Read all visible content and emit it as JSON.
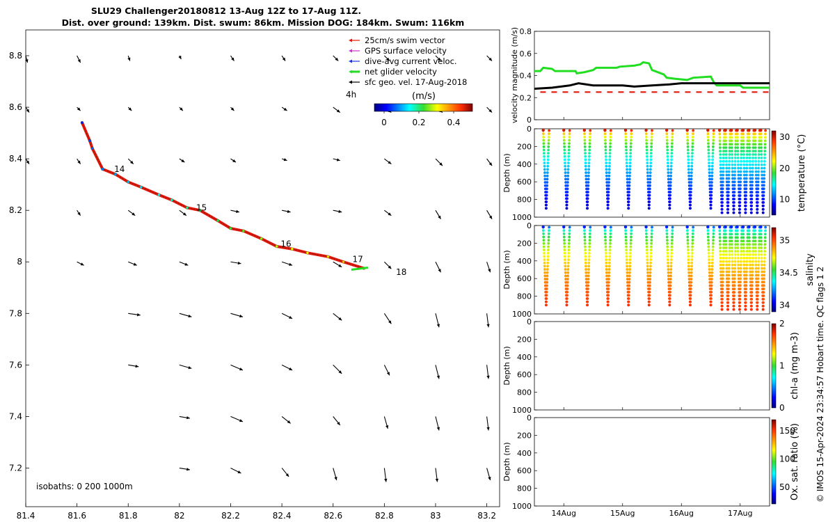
{
  "title": {
    "line1": "SLU29 Challenger20180812 13-Aug 12Z to 17-Aug 11Z.",
    "line2": "Dist. over ground: 139km. Dist. swum: 86km. Mission DOG: 184km. Swum: 116km"
  },
  "isobaths_label": "isobaths: 0   200  1000m",
  "colorbar_label": "(m/s)",
  "colorbar_ticks": [
    "0",
    "0.2",
    "0.4"
  ],
  "time_marker": "4h",
  "day_labels": [
    "14",
    "15",
    "16",
    "17",
    "18"
  ],
  "footer_note": "© IMOS 15-Apr-2024 23:34:57 Hobart time. QC flags 1  2",
  "legend": [
    {
      "label": "25cm/s swim vector",
      "color": "#e8140c"
    },
    {
      "label": "GPS surface velocity",
      "color": "#cc33cc"
    },
    {
      "label": "dive-avg current veloc.",
      "color": "#1e32e6"
    },
    {
      "label": "net glider velocity",
      "color": "#22dd22"
    },
    {
      "label": "sfc geo. vel. 17-Aug-2018",
      "color": "#000000"
    }
  ],
  "chart_data": [
    {
      "type": "scatter",
      "name": "map",
      "xlim": [
        81.4,
        83.25
      ],
      "ylim": [
        7.05,
        8.9
      ],
      "x_ticks": [
        "81.4",
        "81.6",
        "81.8",
        "82",
        "82.2",
        "82.4",
        "82.6",
        "82.8",
        "83",
        "83.2"
      ],
      "y_ticks": [
        "7.2",
        "7.4",
        "7.6",
        "7.8",
        "8",
        "8.2",
        "8.4",
        "8.6",
        "8.8"
      ],
      "track": [
        {
          "lon": 81.62,
          "lat": 8.54
        },
        {
          "lon": 81.65,
          "lat": 8.47
        },
        {
          "lon": 81.66,
          "lat": 8.44
        },
        {
          "lon": 81.7,
          "lat": 8.36
        },
        {
          "lon": 81.75,
          "lat": 8.34
        },
        {
          "lon": 81.8,
          "lat": 8.31
        },
        {
          "lon": 81.85,
          "lat": 8.29
        },
        {
          "lon": 81.92,
          "lat": 8.26
        },
        {
          "lon": 81.97,
          "lat": 8.24
        },
        {
          "lon": 82.03,
          "lat": 8.21
        },
        {
          "lon": 82.08,
          "lat": 8.2
        },
        {
          "lon": 82.15,
          "lat": 8.16
        },
        {
          "lon": 82.2,
          "lat": 8.13
        },
        {
          "lon": 82.25,
          "lat": 8.12
        },
        {
          "lon": 82.32,
          "lat": 8.09
        },
        {
          "lon": 82.38,
          "lat": 8.06
        },
        {
          "lon": 82.44,
          "lat": 8.05
        },
        {
          "lon": 82.5,
          "lat": 8.035
        },
        {
          "lon": 82.58,
          "lat": 8.02
        },
        {
          "lon": 82.64,
          "lat": 8.0
        },
        {
          "lon": 82.72,
          "lat": 7.975
        }
      ],
      "day_marks": [
        {
          "label": "14",
          "lon": 81.74,
          "lat": 8.36
        },
        {
          "label": "15",
          "lon": 82.06,
          "lat": 8.21
        },
        {
          "label": "16",
          "lon": 82.39,
          "lat": 8.07
        },
        {
          "label": "17",
          "lon": 82.67,
          "lat": 8.01
        },
        {
          "label": "18",
          "lon": 82.84,
          "lat": 7.96
        }
      ],
      "geo_vectors": [
        {
          "lon": 81.4,
          "lat": 8.8,
          "u": 0.01,
          "v": -0.04
        },
        {
          "lon": 81.6,
          "lat": 8.8,
          "u": 0.02,
          "v": -0.04
        },
        {
          "lon": 81.8,
          "lat": 8.8,
          "u": 0.01,
          "v": -0.03
        },
        {
          "lon": 82.0,
          "lat": 8.8,
          "u": 0.01,
          "v": -0.02
        },
        {
          "lon": 82.2,
          "lat": 8.8,
          "u": 0.02,
          "v": -0.03
        },
        {
          "lon": 82.4,
          "lat": 8.8,
          "u": 0.02,
          "v": -0.03
        },
        {
          "lon": 82.6,
          "lat": 8.8,
          "u": 0.03,
          "v": -0.03
        },
        {
          "lon": 82.8,
          "lat": 8.8,
          "u": 0.03,
          "v": -0.03
        },
        {
          "lon": 83.0,
          "lat": 8.8,
          "u": 0.03,
          "v": -0.03
        },
        {
          "lon": 83.2,
          "lat": 8.8,
          "u": 0.03,
          "v": -0.03
        },
        {
          "lon": 81.4,
          "lat": 8.6,
          "u": 0.02,
          "v": -0.03
        },
        {
          "lon": 81.6,
          "lat": 8.6,
          "u": 0.02,
          "v": -0.02
        },
        {
          "lon": 81.8,
          "lat": 8.6,
          "u": 0.02,
          "v": -0.02
        },
        {
          "lon": 82.0,
          "lat": 8.6,
          "u": 0.02,
          "v": -0.02
        },
        {
          "lon": 82.2,
          "lat": 8.6,
          "u": 0.02,
          "v": -0.02
        },
        {
          "lon": 82.4,
          "lat": 8.6,
          "u": 0.03,
          "v": -0.02
        },
        {
          "lon": 82.6,
          "lat": 8.6,
          "u": 0.04,
          "v": -0.03
        },
        {
          "lon": 82.8,
          "lat": 8.6,
          "u": 0.04,
          "v": -0.03
        },
        {
          "lon": 83.0,
          "lat": 8.6,
          "u": 0.04,
          "v": -0.03
        },
        {
          "lon": 83.2,
          "lat": 8.6,
          "u": 0.03,
          "v": -0.03
        },
        {
          "lon": 81.4,
          "lat": 8.4,
          "u": 0.02,
          "v": -0.03
        },
        {
          "lon": 81.6,
          "lat": 8.4,
          "u": 0.02,
          "v": -0.03
        },
        {
          "lon": 81.8,
          "lat": 8.4,
          "u": 0.03,
          "v": -0.03
        },
        {
          "lon": 82.0,
          "lat": 8.4,
          "u": 0.03,
          "v": -0.02
        },
        {
          "lon": 82.2,
          "lat": 8.4,
          "u": 0.03,
          "v": -0.02
        },
        {
          "lon": 82.4,
          "lat": 8.4,
          "u": 0.03,
          "v": -0.01
        },
        {
          "lon": 82.6,
          "lat": 8.4,
          "u": 0.04,
          "v": -0.01
        },
        {
          "lon": 82.8,
          "lat": 8.4,
          "u": 0.04,
          "v": -0.03
        },
        {
          "lon": 83.0,
          "lat": 8.4,
          "u": 0.04,
          "v": -0.04
        },
        {
          "lon": 83.2,
          "lat": 8.4,
          "u": 0.03,
          "v": -0.04
        },
        {
          "lon": 81.6,
          "lat": 8.2,
          "u": 0.02,
          "v": -0.03
        },
        {
          "lon": 81.8,
          "lat": 8.2,
          "u": 0.04,
          "v": -0.03
        },
        {
          "lon": 82.0,
          "lat": 8.2,
          "u": 0.04,
          "v": -0.03
        },
        {
          "lon": 82.2,
          "lat": 8.2,
          "u": 0.05,
          "v": -0.01
        },
        {
          "lon": 82.4,
          "lat": 8.2,
          "u": 0.05,
          "v": -0.01
        },
        {
          "lon": 82.6,
          "lat": 8.2,
          "u": 0.05,
          "v": -0.01
        },
        {
          "lon": 82.8,
          "lat": 8.2,
          "u": 0.04,
          "v": -0.03
        },
        {
          "lon": 83.0,
          "lat": 8.2,
          "u": 0.03,
          "v": -0.05
        },
        {
          "lon": 83.2,
          "lat": 8.2,
          "u": 0.03,
          "v": -0.05
        },
        {
          "lon": 81.6,
          "lat": 8.0,
          "u": 0.04,
          "v": -0.02
        },
        {
          "lon": 81.8,
          "lat": 8.0,
          "u": 0.05,
          "v": -0.02
        },
        {
          "lon": 82.0,
          "lat": 8.0,
          "u": 0.05,
          "v": -0.02
        },
        {
          "lon": 82.2,
          "lat": 8.0,
          "u": 0.06,
          "v": -0.01
        },
        {
          "lon": 82.4,
          "lat": 8.0,
          "u": 0.06,
          "v": -0.02
        },
        {
          "lon": 82.6,
          "lat": 8.0,
          "u": 0.05,
          "v": -0.03
        },
        {
          "lon": 82.8,
          "lat": 8.0,
          "u": 0.04,
          "v": -0.04
        },
        {
          "lon": 83.0,
          "lat": 8.0,
          "u": 0.03,
          "v": -0.06
        },
        {
          "lon": 83.2,
          "lat": 8.0,
          "u": 0.02,
          "v": -0.06
        },
        {
          "lon": 81.8,
          "lat": 7.8,
          "u": 0.07,
          "v": -0.01
        },
        {
          "lon": 82.0,
          "lat": 7.8,
          "u": 0.07,
          "v": -0.02
        },
        {
          "lon": 82.2,
          "lat": 7.8,
          "u": 0.07,
          "v": -0.02
        },
        {
          "lon": 82.4,
          "lat": 7.8,
          "u": 0.06,
          "v": -0.03
        },
        {
          "lon": 82.6,
          "lat": 7.8,
          "u": 0.05,
          "v": -0.04
        },
        {
          "lon": 82.8,
          "lat": 7.8,
          "u": 0.04,
          "v": -0.06
        },
        {
          "lon": 83.0,
          "lat": 7.8,
          "u": 0.02,
          "v": -0.08
        },
        {
          "lon": 83.2,
          "lat": 7.8,
          "u": 0.01,
          "v": -0.08
        },
        {
          "lon": 81.8,
          "lat": 7.6,
          "u": 0.06,
          "v": -0.01
        },
        {
          "lon": 82.0,
          "lat": 7.6,
          "u": 0.07,
          "v": -0.02
        },
        {
          "lon": 82.2,
          "lat": 7.6,
          "u": 0.07,
          "v": -0.03
        },
        {
          "lon": 82.4,
          "lat": 7.6,
          "u": 0.06,
          "v": -0.03
        },
        {
          "lon": 82.6,
          "lat": 7.6,
          "u": 0.05,
          "v": -0.05
        },
        {
          "lon": 82.8,
          "lat": 7.6,
          "u": 0.03,
          "v": -0.06
        },
        {
          "lon": 83.0,
          "lat": 7.6,
          "u": 0.02,
          "v": -0.08
        },
        {
          "lon": 83.2,
          "lat": 7.6,
          "u": 0.01,
          "v": -0.08
        },
        {
          "lon": 82.0,
          "lat": 7.4,
          "u": 0.06,
          "v": -0.01
        },
        {
          "lon": 82.2,
          "lat": 7.4,
          "u": 0.07,
          "v": -0.03
        },
        {
          "lon": 82.4,
          "lat": 7.4,
          "u": 0.05,
          "v": -0.04
        },
        {
          "lon": 82.6,
          "lat": 7.4,
          "u": 0.04,
          "v": -0.05
        },
        {
          "lon": 82.8,
          "lat": 7.4,
          "u": 0.02,
          "v": -0.07
        },
        {
          "lon": 83.0,
          "lat": 7.4,
          "u": 0.02,
          "v": -0.08
        },
        {
          "lon": 83.2,
          "lat": 7.4,
          "u": 0.01,
          "v": -0.08
        },
        {
          "lon": 82.0,
          "lat": 7.2,
          "u": 0.06,
          "v": -0.01
        },
        {
          "lon": 82.2,
          "lat": 7.2,
          "u": 0.06,
          "v": -0.03
        },
        {
          "lon": 82.4,
          "lat": 7.2,
          "u": 0.04,
          "v": -0.05
        },
        {
          "lon": 82.6,
          "lat": 7.2,
          "u": 0.02,
          "v": -0.07
        },
        {
          "lon": 82.8,
          "lat": 7.2,
          "u": 0.01,
          "v": -0.08
        },
        {
          "lon": 83.0,
          "lat": 7.2,
          "u": 0.01,
          "v": -0.08
        },
        {
          "lon": 83.2,
          "lat": 7.2,
          "u": 0.02,
          "v": -0.07
        }
      ]
    },
    {
      "type": "line",
      "name": "velocity",
      "ylabel": "velocity magnitude (m/s)",
      "ylim": [
        0,
        0.8
      ],
      "y_ticks": [
        "0",
        "0.2",
        "0.4",
        "0.6",
        "0.8"
      ],
      "xlim": [
        13.5,
        17.5
      ],
      "series": [
        {
          "color": "#22dd22",
          "points": [
            [
              13.5,
              0.44
            ],
            [
              13.6,
              0.44
            ],
            [
              13.65,
              0.47
            ],
            [
              13.8,
              0.46
            ],
            [
              13.85,
              0.44
            ],
            [
              14.2,
              0.44
            ],
            [
              14.22,
              0.42
            ],
            [
              14.35,
              0.43
            ],
            [
              14.5,
              0.45
            ],
            [
              14.55,
              0.47
            ],
            [
              14.9,
              0.47
            ],
            [
              14.95,
              0.48
            ],
            [
              15.2,
              0.49
            ],
            [
              15.3,
              0.5
            ],
            [
              15.35,
              0.52
            ],
            [
              15.45,
              0.51
            ],
            [
              15.5,
              0.45
            ],
            [
              15.7,
              0.41
            ],
            [
              15.75,
              0.38
            ],
            [
              15.9,
              0.37
            ],
            [
              16.1,
              0.36
            ],
            [
              16.2,
              0.38
            ],
            [
              16.5,
              0.39
            ],
            [
              16.55,
              0.34
            ],
            [
              16.6,
              0.31
            ],
            [
              17.0,
              0.31
            ],
            [
              17.05,
              0.29
            ],
            [
              17.5,
              0.29
            ]
          ]
        },
        {
          "color": "#000000",
          "points": [
            [
              13.5,
              0.28
            ],
            [
              13.8,
              0.29
            ],
            [
              14.1,
              0.31
            ],
            [
              14.25,
              0.33
            ],
            [
              14.5,
              0.31
            ],
            [
              15.0,
              0.31
            ],
            [
              15.2,
              0.3
            ],
            [
              15.5,
              0.31
            ],
            [
              15.8,
              0.32
            ],
            [
              16.0,
              0.33
            ],
            [
              16.5,
              0.33
            ],
            [
              16.9,
              0.33
            ],
            [
              17.5,
              0.33
            ]
          ]
        },
        {
          "color": "#e8140c",
          "dashed": true,
          "points": [
            [
              13.6,
              0.25
            ],
            [
              14.0,
              0.25
            ],
            [
              14.4,
              0.25
            ],
            [
              14.8,
              0.25
            ],
            [
              15.2,
              0.25
            ],
            [
              15.55,
              0.25
            ],
            [
              16.0,
              0.25
            ],
            [
              16.5,
              0.25
            ],
            [
              17.5,
              0.25
            ]
          ]
        }
      ]
    },
    {
      "type": "scatter",
      "name": "temperature",
      "ylabel": "Depth (m)",
      "ylim": [
        0,
        1000
      ],
      "y_ticks": [
        "0",
        "200",
        "400",
        "600",
        "800",
        "1000"
      ],
      "colorbar_label": "temperature (°C)",
      "colorbar_ticks": [
        "10",
        "20",
        "30"
      ],
      "colorbar_range": [
        5,
        32
      ],
      "max_depth": [
        900,
        900,
        900,
        900,
        900,
        900,
        900,
        900,
        900,
        950,
        950,
        950,
        950,
        950,
        950,
        950,
        950
      ],
      "surface_value": 29,
      "deep_value": 7
    },
    {
      "type": "scatter",
      "name": "salinity",
      "ylabel": "Depth (m)",
      "ylim": [
        0,
        1000
      ],
      "y_ticks": [
        "0",
        "200",
        "400",
        "600",
        "800",
        "1000"
      ],
      "colorbar_label": "salinity",
      "colorbar_ticks": [
        "34",
        "34.5",
        "35"
      ],
      "colorbar_range": [
        33.9,
        35.2
      ],
      "max_depth": [
        900,
        900,
        900,
        900,
        900,
        900,
        900,
        900,
        900,
        950,
        950,
        950,
        950,
        950,
        950,
        950,
        950
      ],
      "surface_value": 34.2,
      "deep_value": 35.05
    },
    {
      "type": "scatter",
      "name": "chl-a",
      "ylabel": "Depth (m)",
      "ylim": [
        0,
        1000
      ],
      "y_ticks": [
        "0",
        "200",
        "400",
        "600",
        "800",
        "1000"
      ],
      "colorbar_label": "chl-a (mg m-3)",
      "colorbar_ticks": [
        "0",
        "1",
        "2"
      ]
    },
    {
      "type": "scatter",
      "name": "oxygen",
      "ylabel": "Depth (m)",
      "ylim": [
        0,
        1000
      ],
      "y_ticks": [
        "0",
        "200",
        "400",
        "600",
        "800",
        "1000"
      ],
      "colorbar_label": "Ox. sat. ratio (%)",
      "colorbar_ticks": [
        "50",
        "100",
        "150"
      ],
      "x_ticks": [
        "14Aug",
        "15Aug",
        "16Aug",
        "17Aug"
      ]
    }
  ]
}
